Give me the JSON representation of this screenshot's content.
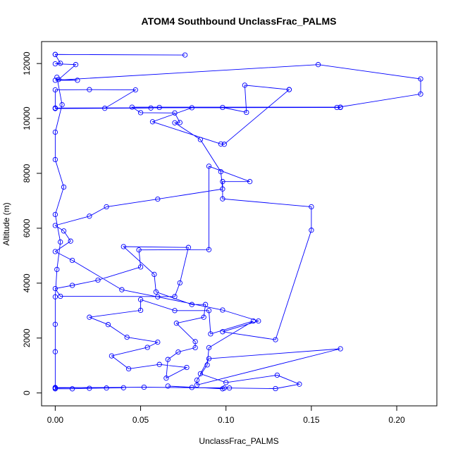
{
  "chart_data": {
    "type": "scatter",
    "title": "ATOM4 Southbound UnclassFrac_PALMS",
    "xlabel": "UnclassFrac_PALMS",
    "ylabel": "Altitude (m)",
    "xlim": [
      -0.008,
      0.2235
    ],
    "ylim": [
      -470,
      12800
    ],
    "xticks": [
      0,
      0.05,
      0.1,
      0.15,
      0.2
    ],
    "xtick_labels": [
      "0.00",
      "0.05",
      "0.10",
      "0.15",
      "0.20"
    ],
    "yticks": [
      0,
      2000,
      4000,
      6000,
      8000,
      10000,
      12000
    ],
    "ytick_labels": [
      "0",
      "2000",
      "4000",
      "6000",
      "8000",
      "10000",
      "12000"
    ],
    "grid": false,
    "color": "#0000ff",
    "marker": "open-circle",
    "connected": true,
    "series": [
      {
        "x": [
          0.0,
          0.076,
          0.0,
          0.003,
          0.0,
          0.012,
          0.002,
          0.013,
          0.0,
          0.154,
          0.214,
          0.214,
          0.165,
          0.0,
          0.0,
          0.02,
          0.047,
          0.029,
          0.0,
          0.056,
          0.061,
          0.08,
          0.057,
          0.097,
          0.099,
          0.137,
          0.137,
          0.111,
          0.112,
          0.098,
          0.167,
          0.167,
          0.045,
          0.05,
          0.07,
          0.073,
          0.07,
          0.085,
          0.097,
          0.098,
          0.06,
          0.03,
          0.02,
          0.0,
          0.005,
          0.009,
          0.0,
          0.01,
          0.039,
          0.06,
          0.098,
          0.119,
          0.098,
          0.129,
          0.15,
          0.15,
          0.098,
          0.098,
          0.114,
          0.09,
          0.09,
          0.049,
          0.05,
          0.025,
          0.01,
          0.0,
          0.003,
          0.07,
          0.073,
          0.078,
          0.04,
          0.058,
          0.059,
          0.08,
          0.088,
          0.087,
          0.071,
          0.082,
          0.082,
          0.072,
          0.066,
          0.065,
          0.077,
          0.061,
          0.043,
          0.033,
          0.054,
          0.06,
          0.042,
          0.031,
          0.02,
          0.05,
          0.05,
          0.07,
          0.09,
          0.091,
          0.116,
          0.09,
          0.089,
          0.083,
          0.083,
          0.167,
          0.09,
          0.085,
          0.1,
          0.13,
          0.143,
          0.129,
          0.102,
          0.08,
          0.066,
          0.098,
          0.099,
          0.052,
          0.0,
          0.0,
          0.01,
          0.02,
          0.03,
          0.04,
          0.0,
          0.0,
          0.0,
          0.0,
          0.001,
          0.003,
          0.0,
          0.005,
          0.0,
          0.0,
          0.004,
          0.001
        ],
        "y": [
          12330,
          12310,
          12330,
          12010,
          11990,
          11960,
          11420,
          11390,
          11390,
          11960,
          11440,
          10890,
          10400,
          10380,
          11040,
          11050,
          11040,
          10370,
          10360,
          10380,
          10400,
          10390,
          9880,
          9070,
          9060,
          11050,
          11050,
          11210,
          10220,
          10400,
          10400,
          10410,
          10410,
          10210,
          10200,
          9850,
          9840,
          9230,
          8060,
          7430,
          7060,
          6780,
          6440,
          6100,
          5900,
          5530,
          5150,
          4830,
          3760,
          3500,
          3020,
          2620,
          2230,
          1940,
          5930,
          6780,
          7070,
          7700,
          7700,
          8260,
          5220,
          5210,
          4590,
          4110,
          3920,
          3800,
          3520,
          3510,
          4010,
          5300,
          5330,
          4320,
          3680,
          3220,
          3220,
          2760,
          2540,
          1870,
          1650,
          1490,
          1220,
          540,
          930,
          1040,
          880,
          1350,
          1660,
          1850,
          2030,
          2490,
          2760,
          3010,
          3400,
          3000,
          3000,
          2150,
          2620,
          1650,
          1020,
          470,
          290,
          1610,
          1250,
          700,
          380,
          650,
          320,
          160,
          180,
          200,
          250,
          150,
          180,
          210,
          180,
          150,
          150,
          170,
          180,
          190,
          200,
          1500,
          2500,
          3500,
          4500,
          5500,
          6500,
          7500,
          8500,
          9500,
          10500,
          11500
        ]
      }
    ]
  }
}
